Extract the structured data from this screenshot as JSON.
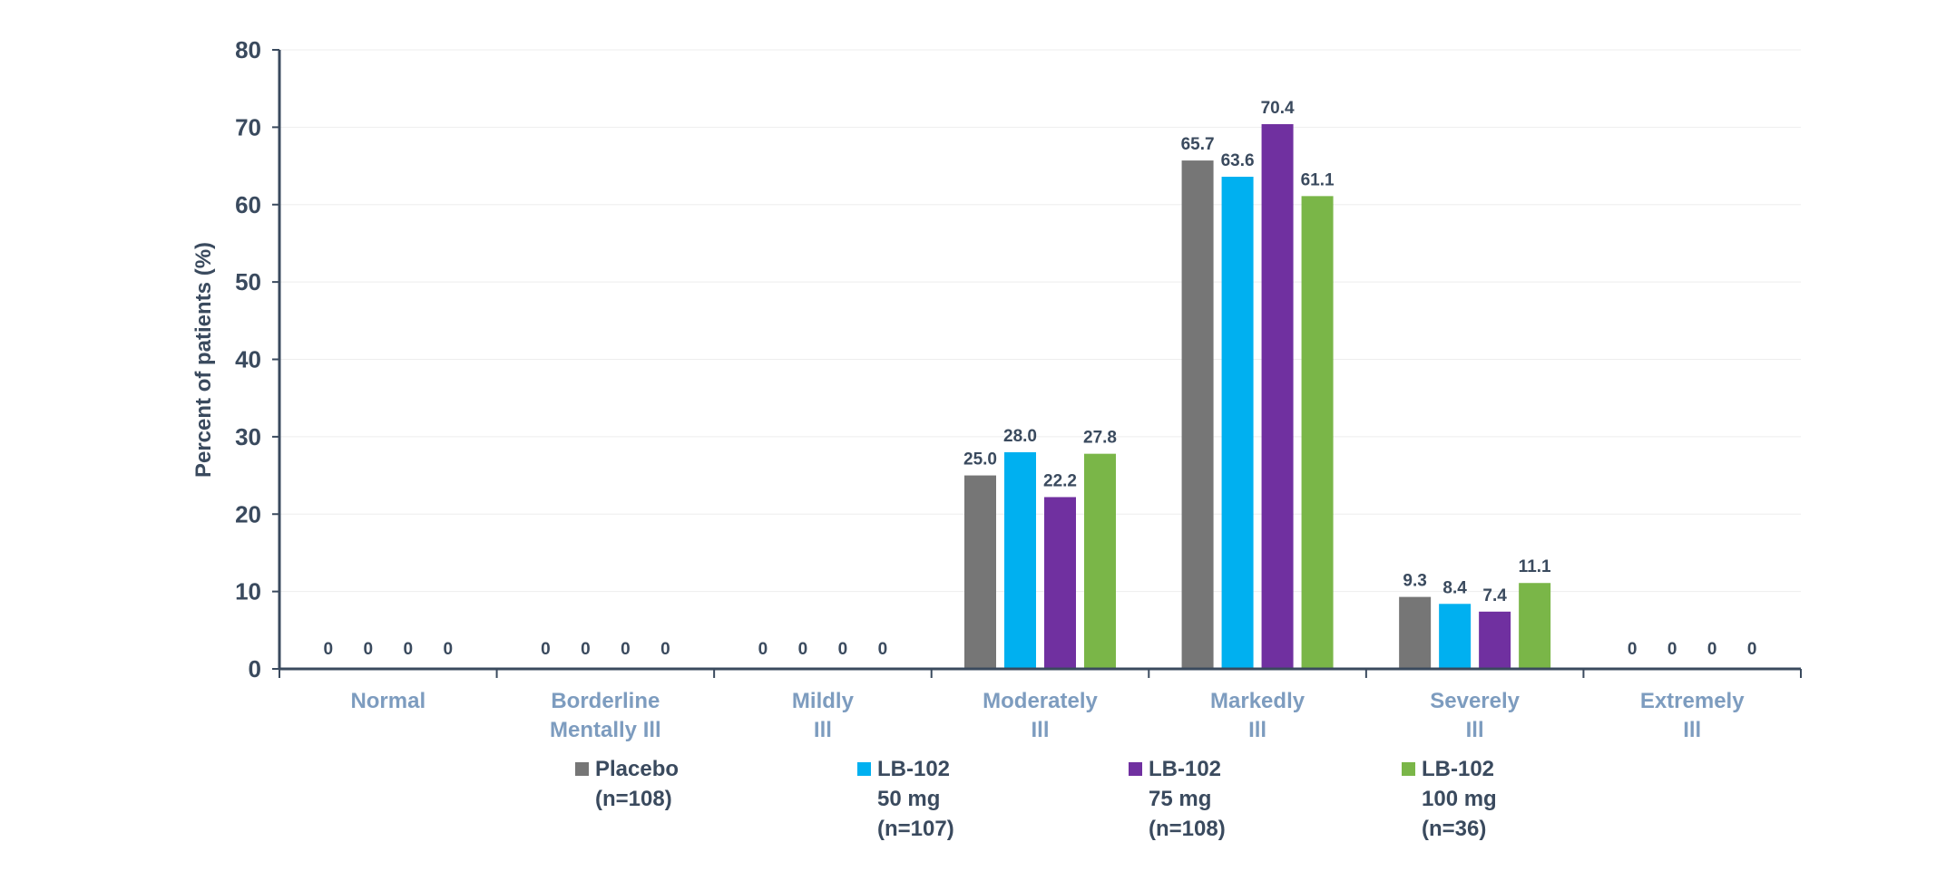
{
  "chart_data": {
    "type": "bar",
    "title": "",
    "xlabel": "",
    "ylabel": "Percent of patients (%)",
    "ylim": [
      0,
      80
    ],
    "yticks": [
      0,
      10,
      20,
      30,
      40,
      50,
      60,
      70,
      80
    ],
    "grid": true,
    "legend_position": "bottom",
    "categories": [
      [
        "Normal"
      ],
      [
        "Borderline",
        "Mentally Ill"
      ],
      [
        "Mildly",
        "Ill"
      ],
      [
        "Moderately",
        "Ill"
      ],
      [
        "Markedly",
        "Ill"
      ],
      [
        "Severely",
        "Ill"
      ],
      [
        "Extremely",
        "Ill"
      ]
    ],
    "series": [
      {
        "name": [
          "Placebo",
          "(n=108)"
        ],
        "color": "#767676",
        "values": [
          0,
          0,
          0,
          25.0,
          65.7,
          9.3,
          0
        ],
        "labels": [
          "0",
          "0",
          "0",
          "25.0",
          "65.7",
          "9.3",
          "0"
        ]
      },
      {
        "name": [
          "LB-102",
          "50 mg",
          "(n=107)"
        ],
        "color": "#00b0f0",
        "values": [
          0,
          0,
          0,
          28.0,
          63.6,
          8.4,
          0
        ],
        "labels": [
          "0",
          "0",
          "0",
          "28.0",
          "63.6",
          "8.4",
          "0"
        ]
      },
      {
        "name": [
          "LB-102",
          "75 mg",
          "(n=108)"
        ],
        "color": "#7030a0",
        "values": [
          0,
          0,
          0,
          22.2,
          70.4,
          7.4,
          0
        ],
        "labels": [
          "0",
          "0",
          "0",
          "22.2",
          "70.4",
          "7.4",
          "0"
        ]
      },
      {
        "name": [
          "LB-102",
          "100 mg",
          "(n=36)"
        ],
        "color": "#7ab648",
        "values": [
          0,
          0,
          0,
          27.8,
          61.1,
          11.1,
          0
        ],
        "labels": [
          "0",
          "0",
          "0",
          "27.8",
          "61.1",
          "11.1",
          "0"
        ]
      }
    ]
  },
  "colors": {
    "axis": "#3a4a5e",
    "tick_text": "#3a4a5e",
    "category_text": "#7d9cbf",
    "grid": "#eeeeee",
    "data_label": "#3a4a5e"
  }
}
